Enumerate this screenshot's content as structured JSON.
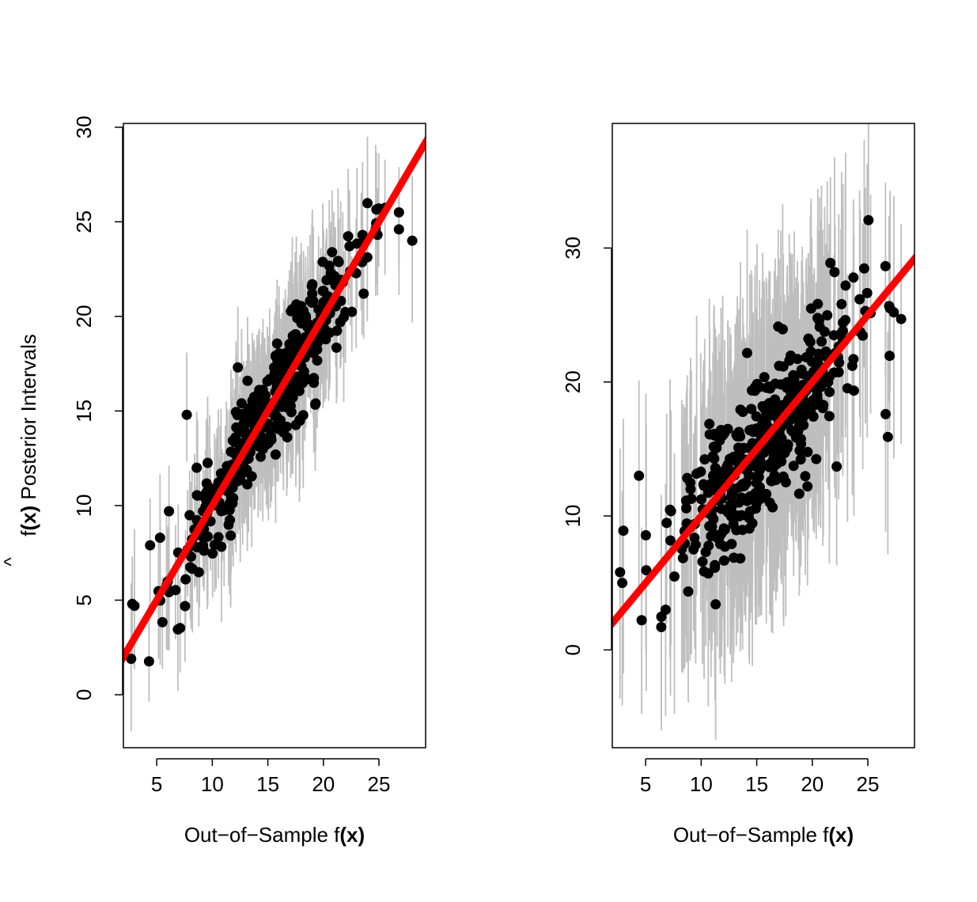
{
  "colors": {
    "points": "#000000",
    "intervals": "#bebebe",
    "identity_line": "#ff0000",
    "axes": "#000000",
    "background": "#ffffff"
  },
  "ylabel_parts": {
    "hat": "^",
    "f": "f",
    "open": "(",
    "x": "x",
    "close": ")",
    "rest": "Posterior Intervals"
  },
  "chart_data": [
    {
      "type": "scatter",
      "title": "",
      "xlabel_parts": {
        "prefix": "Out−of−Sample f",
        "open": "(",
        "x": "x",
        "close": ")"
      },
      "ylabel": "f̂(x) Posterior Intervals",
      "xlim": [
        2,
        29.2
      ],
      "ylim": [
        -2.8,
        30.2
      ],
      "xticks": [
        5,
        10,
        15,
        20,
        25
      ],
      "xtick_labels": [
        "5",
        "10",
        "15",
        "20",
        "25"
      ],
      "yticks": [
        0,
        5,
        10,
        15,
        20,
        25,
        30
      ],
      "ytick_labels": [
        "0",
        "5",
        "10",
        "15",
        "20",
        "25",
        "30"
      ],
      "grid": false,
      "reference_line": {
        "type": "identity",
        "label": "",
        "slope": 1,
        "intercept": 0
      },
      "n_points": 420,
      "interval_halfwidth_approx": 3.2,
      "points_sample": [
        {
          "x": 2.7,
          "y": 1.9
        },
        {
          "x": 2.8,
          "y": 4.8
        },
        {
          "x": 3.0,
          "y": 4.7
        },
        {
          "x": 4.4,
          "y": 7.9
        },
        {
          "x": 5.3,
          "y": 8.3
        },
        {
          "x": 6.1,
          "y": 9.7
        },
        {
          "x": 7.7,
          "y": 14.8
        },
        {
          "x": 7.6,
          "y": 6.1
        },
        {
          "x": 8.6,
          "y": 12.0
        },
        {
          "x": 12.3,
          "y": 17.3
        },
        {
          "x": 19.0,
          "y": 21.7
        },
        {
          "x": 19.3,
          "y": 15.4
        },
        {
          "x": 26.8,
          "y": 25.5
        },
        {
          "x": 28.0,
          "y": 24.0
        },
        {
          "x": 26.8,
          "y": 24.6
        }
      ]
    },
    {
      "type": "scatter",
      "title": "",
      "xlabel_parts": {
        "prefix": "Out−of−Sample f",
        "open": "(",
        "x": "x",
        "close": ")"
      },
      "ylabel": "",
      "xlim": [
        2,
        29.2
      ],
      "ylim": [
        -7.3,
        39.3
      ],
      "xticks": [
        5,
        10,
        15,
        20,
        25
      ],
      "xtick_labels": [
        "5",
        "10",
        "15",
        "20",
        "25"
      ],
      "yticks": [
        0,
        10,
        20,
        30
      ],
      "ytick_labels": [
        "0",
        "10",
        "20",
        "30"
      ],
      "grid": false,
      "reference_line": {
        "type": "identity",
        "label": "",
        "slope": 1,
        "intercept": 0
      },
      "n_points": 420,
      "interval_halfwidth_approx": 8.5,
      "points_sample": [
        {
          "x": 2.7,
          "y": 5.8
        },
        {
          "x": 2.9,
          "y": 5.0
        },
        {
          "x": 3.0,
          "y": 8.9
        },
        {
          "x": 4.4,
          "y": 13.0
        },
        {
          "x": 6.8,
          "y": 3.0
        },
        {
          "x": 11.3,
          "y": 3.4
        },
        {
          "x": 22.0,
          "y": 28.2
        },
        {
          "x": 23.0,
          "y": 27.2
        },
        {
          "x": 26.6,
          "y": 17.6
        },
        {
          "x": 26.8,
          "y": 15.9
        },
        {
          "x": 28.0,
          "y": 24.7
        },
        {
          "x": 27.0,
          "y": 25.5
        }
      ]
    }
  ]
}
